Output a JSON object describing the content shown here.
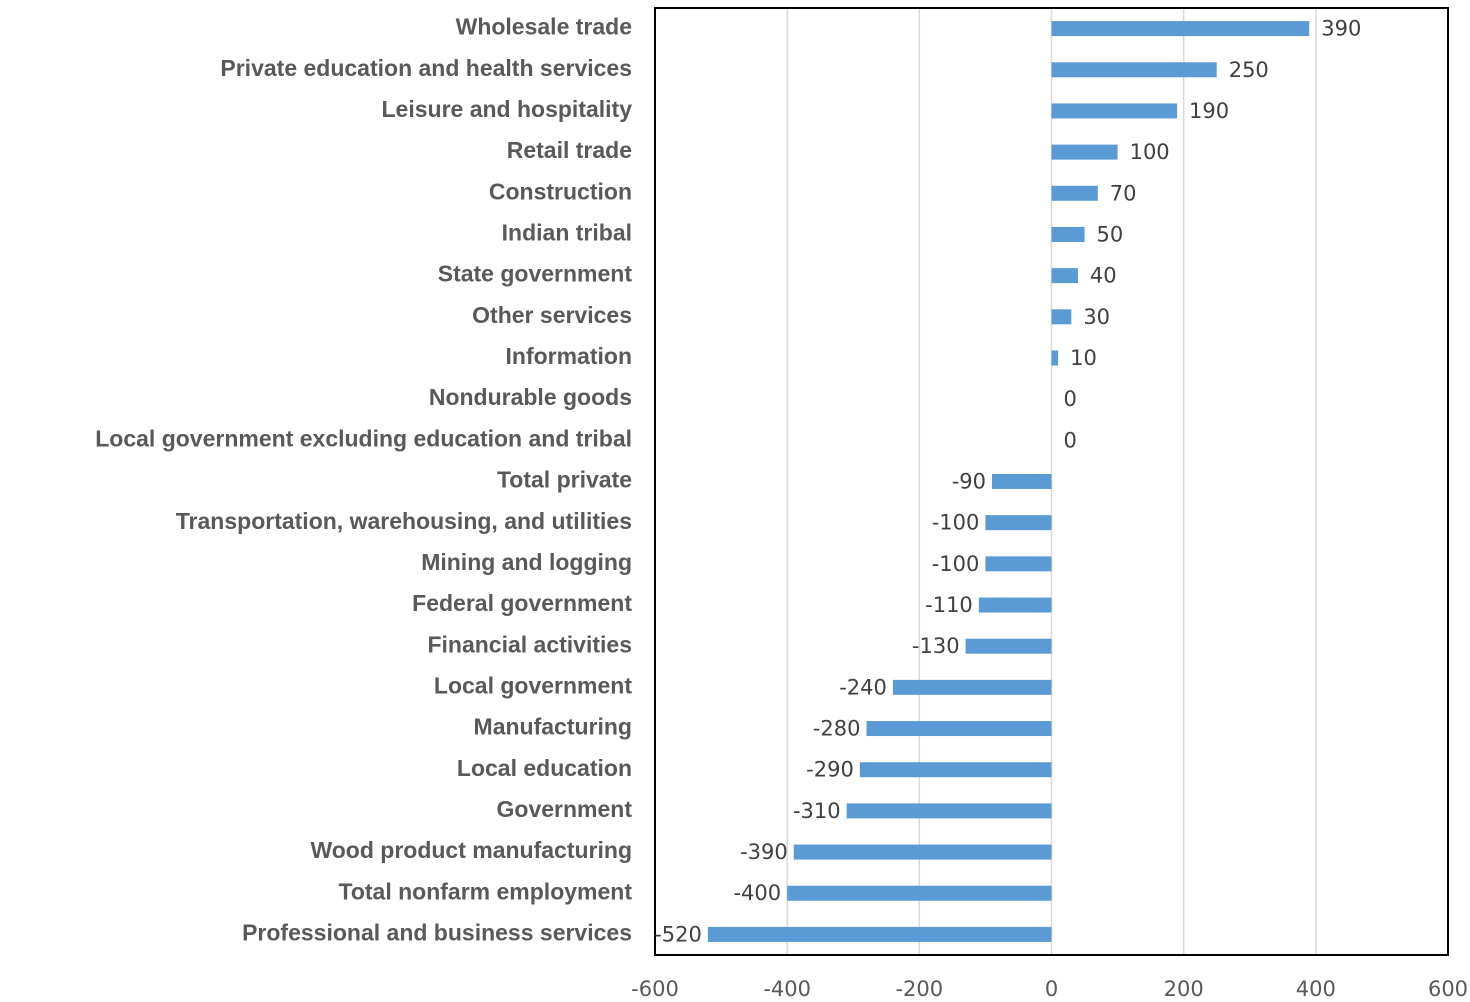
{
  "chart_data": {
    "type": "bar",
    "orientation": "horizontal",
    "categories": [
      "Wholesale trade",
      "Private education and health services",
      "Leisure and hospitality",
      "Retail trade",
      "Construction",
      "Indian tribal",
      "State government",
      "Other services",
      "Information",
      "Nondurable goods",
      "Local government excluding education and tribal",
      "Total private",
      "Transportation, warehousing, and utilities",
      "Mining and logging",
      "Federal government",
      "Financial activities",
      "Local government",
      "Manufacturing",
      "Local education",
      "Government",
      "Wood product manufacturing",
      "Total nonfarm employment",
      "Professional and business services"
    ],
    "values": [
      390,
      250,
      190,
      100,
      70,
      50,
      40,
      30,
      10,
      0,
      0,
      -90,
      -100,
      -100,
      -110,
      -130,
      -240,
      -280,
      -290,
      -310,
      -390,
      -400,
      -520
    ],
    "color": "#5b9bd5",
    "xlim": [
      -600,
      600
    ],
    "xticks": [
      -600,
      -400,
      -200,
      0,
      200,
      400,
      600
    ],
    "grid": true
  }
}
